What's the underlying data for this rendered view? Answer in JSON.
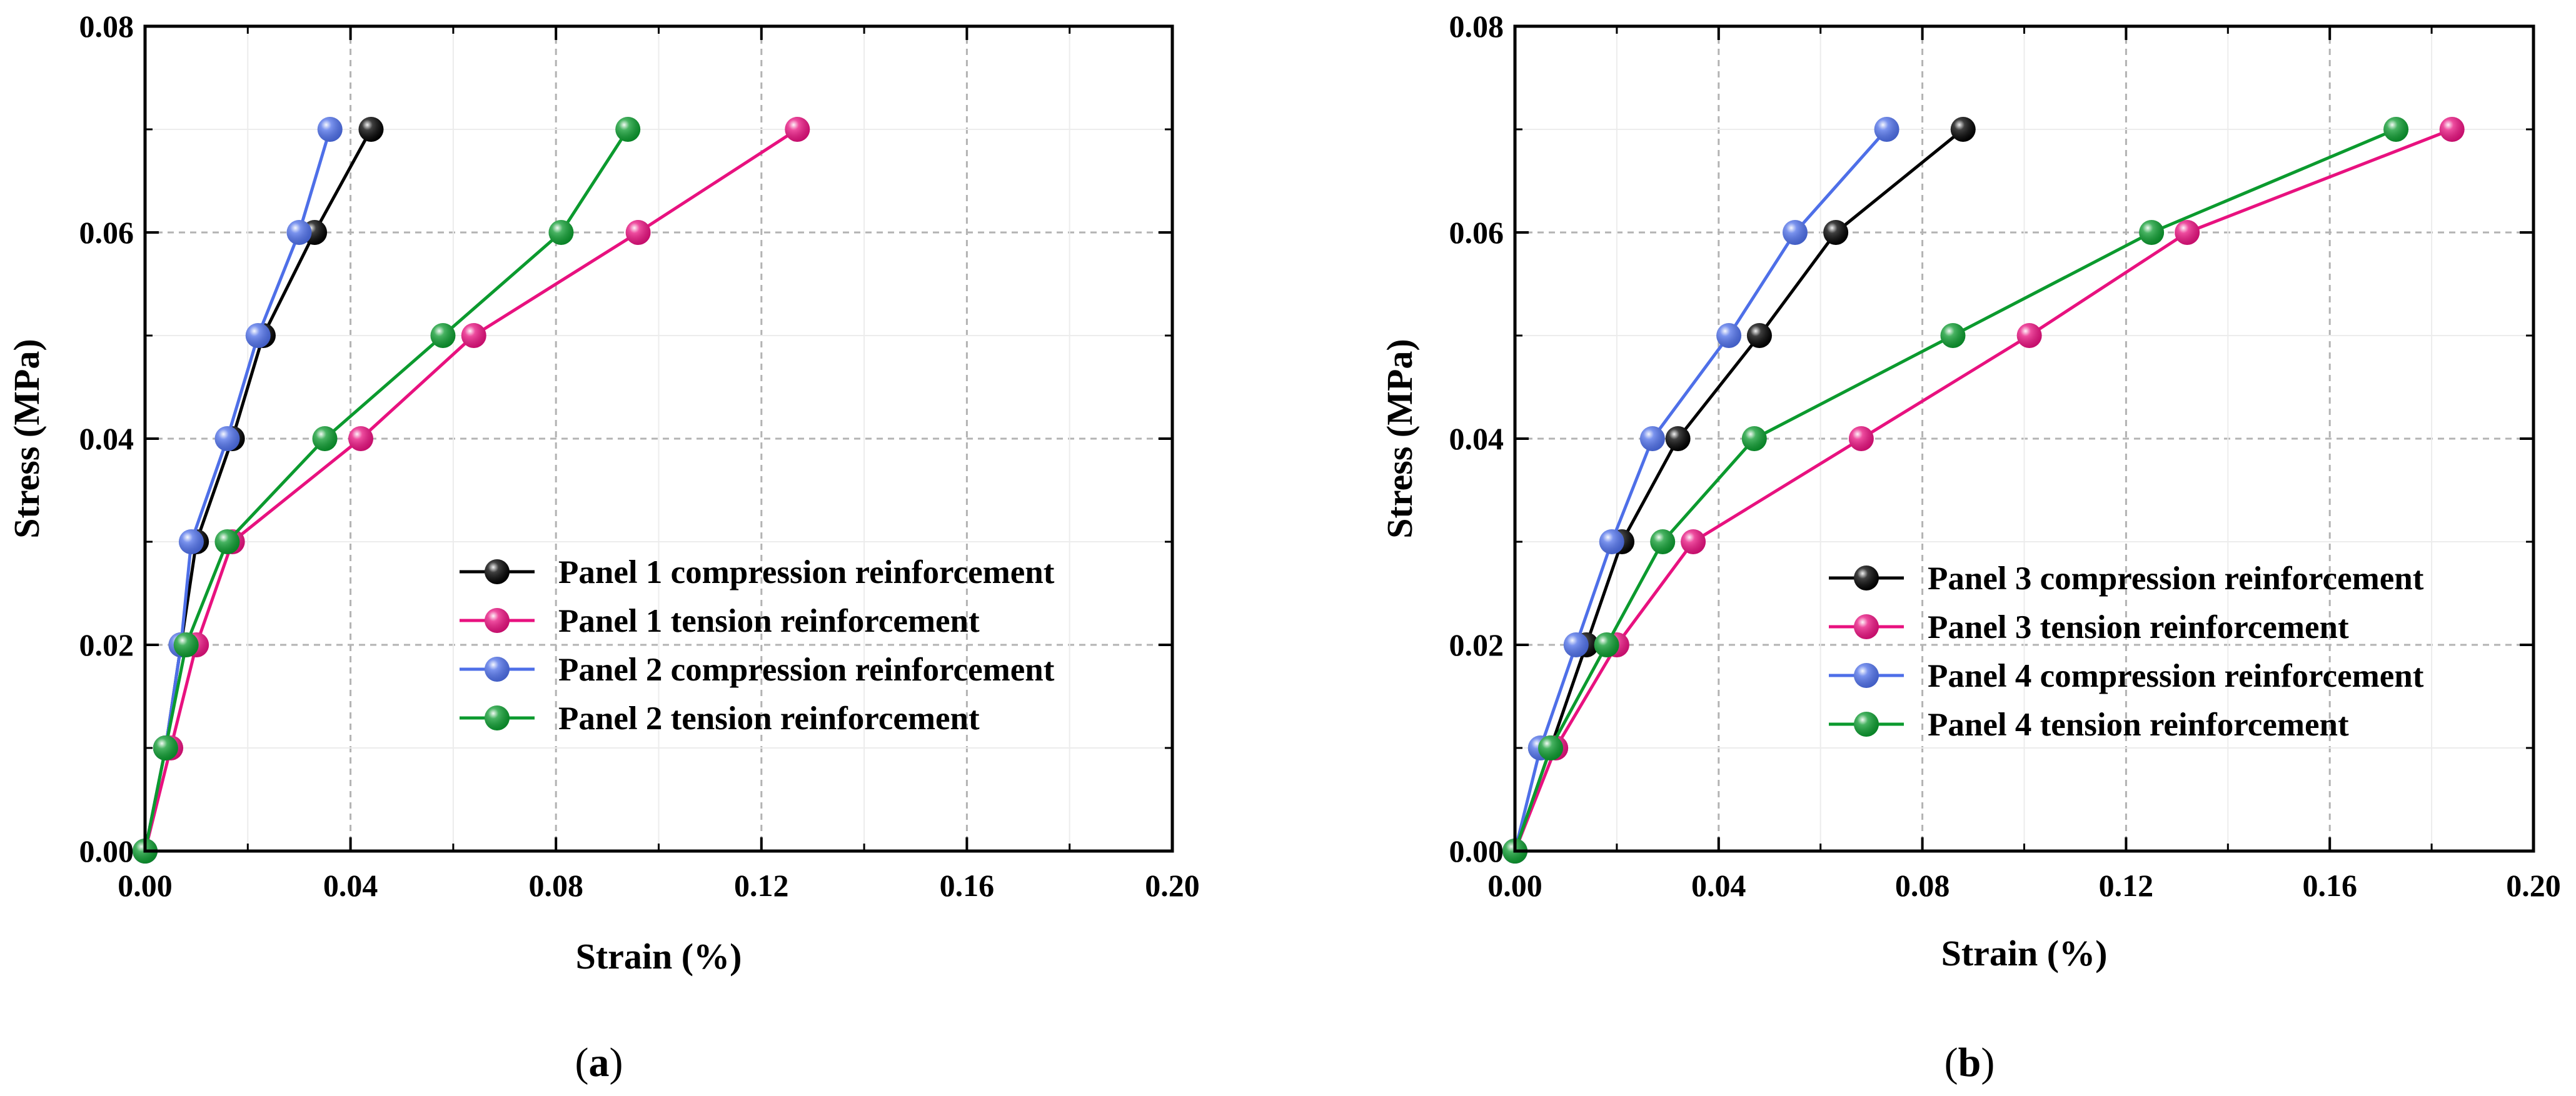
{
  "chart_data": [
    {
      "type": "line",
      "panel_label": "a",
      "xlabel": "Strain (%)",
      "ylabel": "Stress (MPa)",
      "xlim": [
        0,
        0.2
      ],
      "ylim": [
        0,
        0.08
      ],
      "xticks": [
        "0.00",
        "0.04",
        "0.08",
        "0.12",
        "0.16",
        "0.20"
      ],
      "yticks": [
        "0.00",
        "0.02",
        "0.04",
        "0.06",
        "0.08"
      ],
      "grid": true,
      "legend_position": "lower-right",
      "series": [
        {
          "name": "Panel 1 compression reinforcement",
          "color": "#000000",
          "x": [
            0,
            0.004,
            0.007,
            0.01,
            0.017,
            0.023,
            0.033,
            0.044
          ],
          "y": [
            0,
            0.01,
            0.02,
            0.03,
            0.04,
            0.05,
            0.06,
            0.07
          ]
        },
        {
          "name": "Panel 1 tension reinforcement",
          "color": "#e8117f",
          "x": [
            0,
            0.005,
            0.01,
            0.017,
            0.042,
            0.064,
            0.096,
            0.127
          ],
          "y": [
            0,
            0.01,
            0.02,
            0.03,
            0.04,
            0.05,
            0.06,
            0.07
          ]
        },
        {
          "name": "Panel 2 compression reinforcement",
          "color": "#4e6fe8",
          "x": [
            0,
            0.004,
            0.007,
            0.009,
            0.016,
            0.022,
            0.03,
            0.036
          ],
          "y": [
            0,
            0.01,
            0.02,
            0.03,
            0.04,
            0.05,
            0.06,
            0.07
          ]
        },
        {
          "name": "Panel 2 tension reinforcement",
          "color": "#0b9a2e",
          "x": [
            0,
            0.004,
            0.008,
            0.016,
            0.035,
            0.058,
            0.081,
            0.094
          ],
          "y": [
            0,
            0.01,
            0.02,
            0.03,
            0.04,
            0.05,
            0.06,
            0.07
          ]
        }
      ]
    },
    {
      "type": "line",
      "panel_label": "b",
      "xlabel": "Strain (%)",
      "ylabel": "Stress (MPa)",
      "xlim": [
        0,
        0.2
      ],
      "ylim": [
        0,
        0.08
      ],
      "xticks": [
        "0.00",
        "0.04",
        "0.08",
        "0.12",
        "0.16",
        "0.20"
      ],
      "yticks": [
        "0.00",
        "0.02",
        "0.04",
        "0.06",
        "0.08"
      ],
      "grid": true,
      "legend_position": "lower-right",
      "series": [
        {
          "name": "Panel 3 compression reinforcement",
          "color": "#000000",
          "x": [
            0,
            0.007,
            0.014,
            0.021,
            0.032,
            0.048,
            0.063,
            0.088
          ],
          "y": [
            0,
            0.01,
            0.02,
            0.03,
            0.04,
            0.05,
            0.06,
            0.07
          ]
        },
        {
          "name": "Panel 3 tension reinforcement",
          "color": "#e8117f",
          "x": [
            0,
            0.008,
            0.02,
            0.035,
            0.068,
            0.101,
            0.132,
            0.184
          ],
          "y": [
            0,
            0.01,
            0.02,
            0.03,
            0.04,
            0.05,
            0.06,
            0.07
          ]
        },
        {
          "name": "Panel 4 compression reinforcement",
          "color": "#4e6fe8",
          "x": [
            0,
            0.005,
            0.012,
            0.019,
            0.027,
            0.042,
            0.055,
            0.073
          ],
          "y": [
            0,
            0.01,
            0.02,
            0.03,
            0.04,
            0.05,
            0.06,
            0.07
          ]
        },
        {
          "name": "Panel 4 tension reinforcement",
          "color": "#0b9a2e",
          "x": [
            0,
            0.007,
            0.018,
            0.029,
            0.047,
            0.086,
            0.125,
            0.173
          ],
          "y": [
            0,
            0.01,
            0.02,
            0.03,
            0.04,
            0.05,
            0.06,
            0.07
          ]
        }
      ]
    }
  ]
}
